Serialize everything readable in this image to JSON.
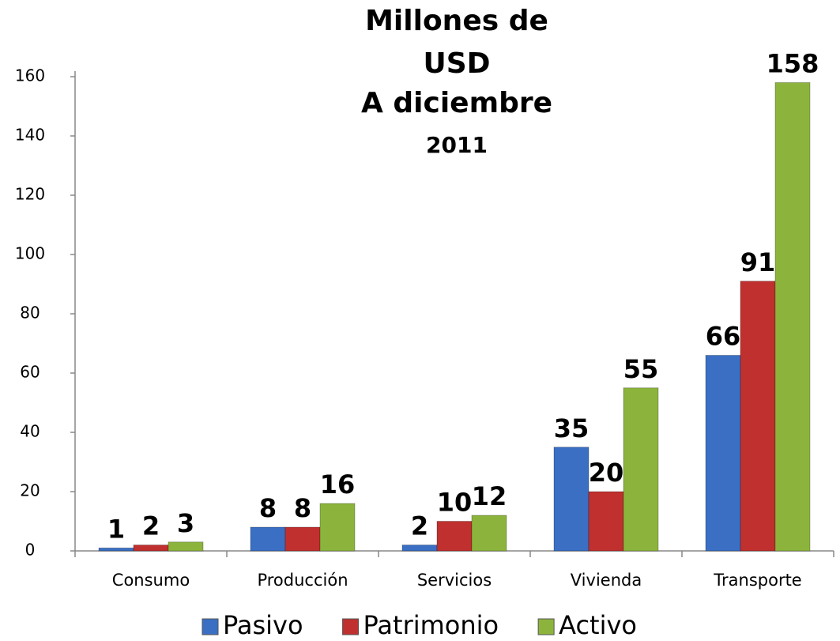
{
  "chart_data": {
    "type": "bar",
    "title": [
      "Millones de",
      "USD",
      "A diciembre"
    ],
    "subtitle": "2011",
    "categories": [
      "Consumo",
      "Producción",
      "Servicios",
      "Vivienda",
      "Transporte"
    ],
    "series": [
      {
        "name": "Pasivo",
        "color": "#3a6fc4",
        "values": [
          1,
          8,
          2,
          35,
          66
        ]
      },
      {
        "name": "Patrimonio",
        "color": "#c0302e",
        "values": [
          2,
          8,
          10,
          20,
          91
        ]
      },
      {
        "name": "Activo",
        "color": "#8cb43c",
        "values": [
          3,
          16,
          12,
          55,
          158
        ]
      }
    ],
    "ylim": [
      0,
      160
    ],
    "yticks": [
      0,
      20,
      40,
      60,
      80,
      100,
      120,
      140,
      160
    ],
    "grid": false,
    "legend": "bottom"
  }
}
